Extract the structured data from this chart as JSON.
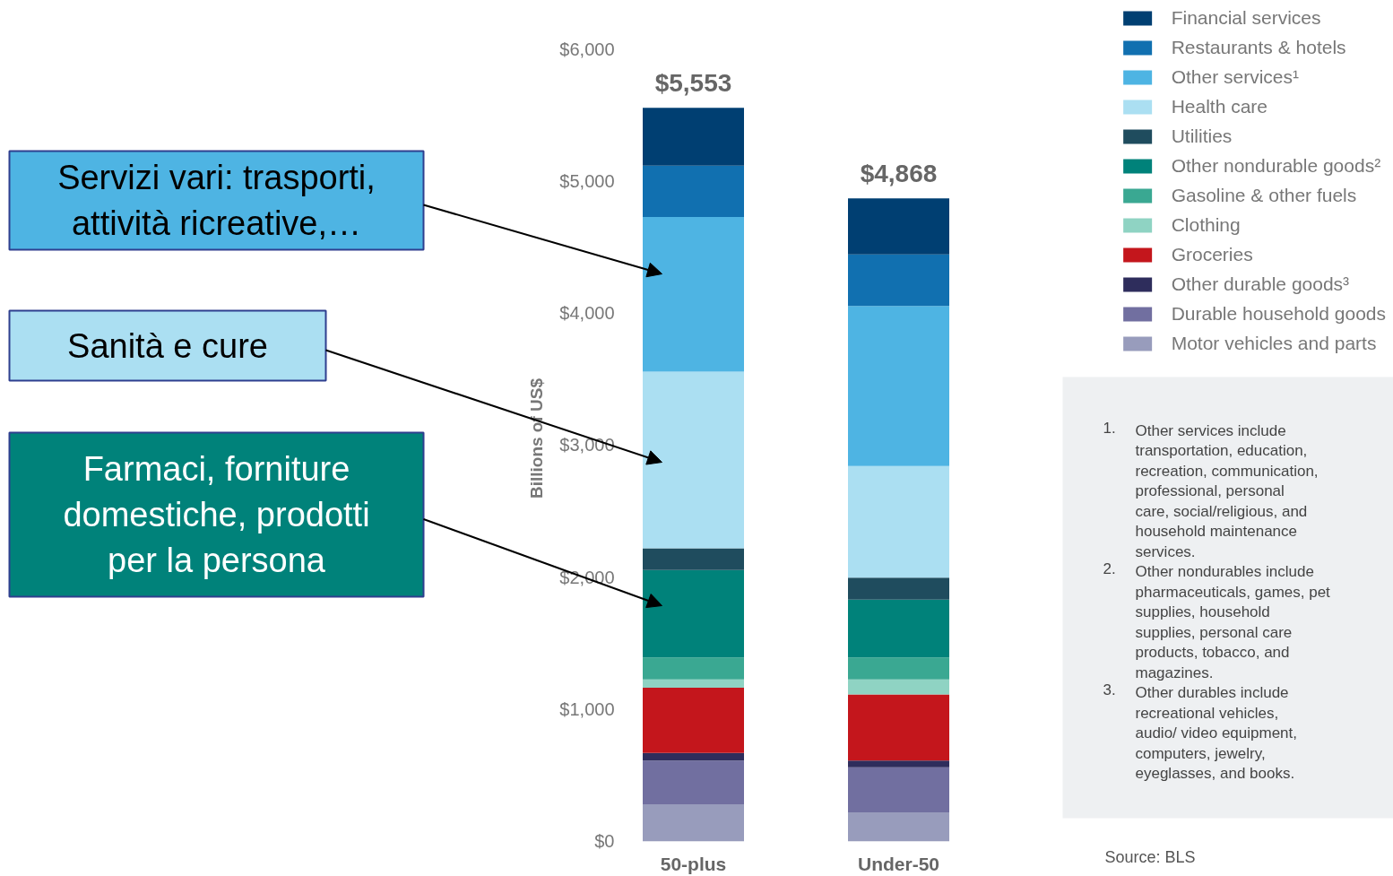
{
  "chart_data": {
    "type": "bar",
    "stacked": true,
    "categories": [
      "50-plus",
      "Under-50"
    ],
    "ylabel": "Billions of US$",
    "ylim": [
      0,
      6000
    ],
    "yticks": [
      {
        "value": 0,
        "label": "$0"
      },
      {
        "value": 1000,
        "label": "$1,000"
      },
      {
        "value": 2000,
        "label": "$2,000"
      },
      {
        "value": 3000,
        "label": "$3,000"
      },
      {
        "value": 4000,
        "label": "$4,000"
      },
      {
        "value": 5000,
        "label": "$5,000"
      },
      {
        "value": 6000,
        "label": "$6,000"
      }
    ],
    "grid": false,
    "legend": "top right",
    "totals": [
      "$5,553",
      "$4,868"
    ],
    "series": [
      {
        "name": "Motor vehicles and parts",
        "color": "#989cbc",
        "values": [
          279,
          219
        ]
      },
      {
        "name": "Durable household goods",
        "color": "#716fa0",
        "values": [
          331,
          340
        ]
      },
      {
        "name": "Other durable goods³",
        "color": "#2e2d5c",
        "values": [
          59,
          51
        ]
      },
      {
        "name": "Groceries",
        "color": "#c4161c",
        "values": [
          494,
          501
        ]
      },
      {
        "name": "Clothing",
        "color": "#8fd3c3",
        "values": [
          62,
          115
        ]
      },
      {
        "name": "Gasoline & other fuels",
        "color": "#3aa892",
        "values": [
          166,
          166
        ]
      },
      {
        "name": "Other nondurable goods²",
        "color": "#00827a",
        "values": [
          662,
          437
        ]
      },
      {
        "name": "Utilities",
        "color": "#1f4c5e",
        "values": [
          166,
          166
        ]
      },
      {
        "name": "Health care",
        "color": "#abdff2",
        "values": [
          1336,
          846
        ]
      },
      {
        "name": "Other services¹",
        "color": "#4eb4e3",
        "values": [
          1172,
          1212
        ]
      },
      {
        "name": "Restaurants & hotels",
        "color": "#1170b0",
        "values": [
          388,
          390
        ]
      },
      {
        "name": "Financial services",
        "color": "#003f72",
        "values": [
          438,
          425
        ]
      }
    ],
    "annotations": [
      "Servizi vari: trasporti, attività ricreative,…",
      "Sanità e cure",
      "Farmaci, forniture domestiche, prodotti per la persona",
      "1. Other services include transportation, education, recreation, communication, professional, personal care, social/religious, and household maintenance services.",
      "2. Other nondurables include pharmaceuticals, games, pet supplies, household supplies, personal care products, tobacco, and magazines.",
      "3. Other durables include recreational vehicles, audio/ video equipment, computers, jewelry, eyeglasses, and books.",
      "Source: BLS"
    ]
  }
}
